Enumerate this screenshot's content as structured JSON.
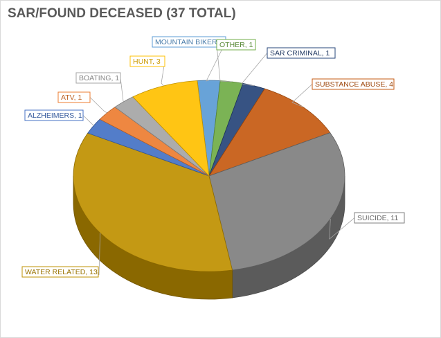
{
  "chart_data": {
    "type": "pie",
    "title": "SAR/FOUND DECEASED (37 TOTAL)",
    "total": 37,
    "slices": [
      {
        "label": "MOUNTAIN BIKER,",
        "value": 1,
        "color": "#5b9bd5"
      },
      {
        "label": "OTHER, 1",
        "value": 1,
        "color": "#70ad47"
      },
      {
        "label": "SAR CRIMINAL, 1",
        "value": 1,
        "color": "#264478"
      },
      {
        "label": "SUBSTANCE ABUSE, 4",
        "value": 4,
        "color": "#c55a11"
      },
      {
        "label": "SUICIDE, 11",
        "value": 11,
        "color": "#7f7f7f"
      },
      {
        "label": "WATER RELATED, 13",
        "value": 13,
        "color": "#bf9000"
      },
      {
        "label": "ALZHEIMERS, 1",
        "value": 1,
        "color": "#4472c4"
      },
      {
        "label": "ATV, 1",
        "value": 1,
        "color": "#ed7d31"
      },
      {
        "label": "BOATING, 1",
        "value": 1,
        "color": "#a5a5a5"
      },
      {
        "label": "HUNT, 3",
        "value": 3,
        "color": "#ffc000"
      }
    ],
    "legend": "none",
    "style": "3d-pie"
  }
}
